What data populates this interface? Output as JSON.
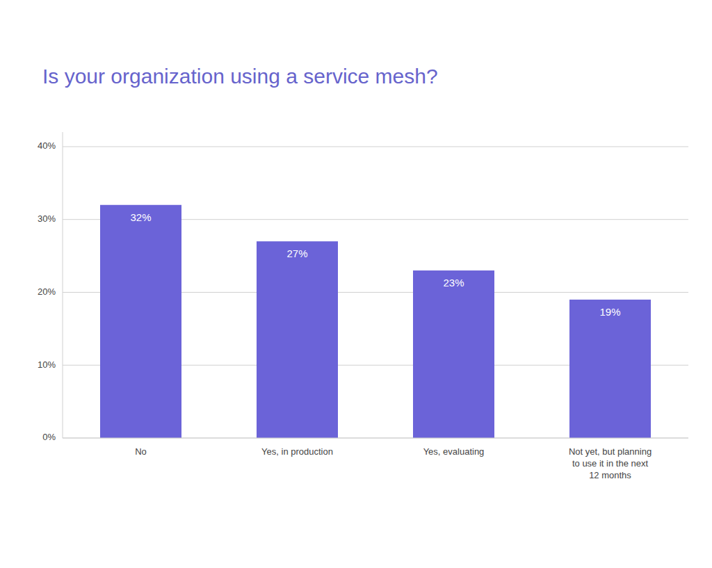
{
  "chart_data": {
    "type": "bar",
    "title": "Is your organization using a service mesh?",
    "categories": [
      "No",
      "Yes, in production",
      "Yes, evaluating",
      "Not yet, but planning\nto use it in the next\n12 months"
    ],
    "values": [
      32,
      27,
      23,
      19
    ],
    "value_labels": [
      "32%",
      "27%",
      "23%",
      "19%"
    ],
    "data_labels": true,
    "color": "#6b63d8",
    "ylim": [
      0,
      42
    ],
    "yticks": [
      {
        "value": 0,
        "label": "0%"
      },
      {
        "value": 10,
        "label": "10%"
      },
      {
        "value": 20,
        "label": "20%"
      },
      {
        "value": 30,
        "label": "30%"
      },
      {
        "value": 40,
        "label": "40%"
      }
    ],
    "grid": true
  }
}
